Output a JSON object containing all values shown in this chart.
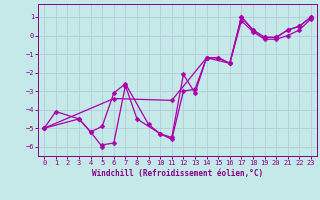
{
  "xlabel": "Windchill (Refroidissement éolien,°C)",
  "xlim_min": -0.5,
  "xlim_max": 23.5,
  "ylim_min": -6.5,
  "ylim_max": 1.7,
  "yticks": [
    1,
    0,
    -1,
    -2,
    -3,
    -4,
    -5,
    -6
  ],
  "xticks": [
    0,
    1,
    2,
    3,
    4,
    5,
    6,
    7,
    8,
    9,
    10,
    11,
    12,
    13,
    14,
    15,
    16,
    17,
    18,
    19,
    20,
    21,
    22,
    23
  ],
  "bg_color": "#c5e8e8",
  "grid_color": "#b0c8d8",
  "line_color": "#aa00aa",
  "s1_x": [
    0,
    1,
    3,
    4,
    5,
    5,
    6,
    7,
    8,
    10,
    11,
    12,
    13,
    14,
    15,
    16,
    17,
    18,
    19,
    20,
    21,
    22,
    23
  ],
  "s1_y": [
    -5.0,
    -4.1,
    -4.5,
    -5.2,
    -6.0,
    -5.9,
    -5.8,
    -2.7,
    -4.5,
    -5.3,
    -5.6,
    -3.0,
    -2.9,
    -1.2,
    -1.2,
    -1.5,
    1.0,
    0.3,
    -0.1,
    -0.1,
    0.3,
    0.5,
    1.0
  ],
  "s2_x": [
    0,
    3,
    4,
    5,
    6,
    7,
    9,
    10,
    11,
    12,
    13,
    14,
    15,
    16,
    17,
    18,
    19,
    20,
    21,
    22,
    23
  ],
  "s2_y": [
    -5.0,
    -4.5,
    -5.2,
    -4.9,
    -3.1,
    -2.6,
    -4.8,
    -5.3,
    -5.5,
    -2.1,
    -3.1,
    -1.2,
    -1.2,
    -1.5,
    0.8,
    0.2,
    -0.2,
    -0.2,
    0.0,
    0.3,
    0.9
  ],
  "s3_x": [
    0,
    6,
    11,
    14,
    16,
    17,
    18,
    19,
    20,
    21,
    22,
    23
  ],
  "s3_y": [
    -5.0,
    -3.4,
    -3.5,
    -1.2,
    -1.5,
    1.0,
    0.3,
    -0.1,
    -0.1,
    0.3,
    0.5,
    1.0
  ],
  "tick_fontsize": 5,
  "xlabel_fontsize": 5.5,
  "tick_color": "#880088",
  "xlabel_color": "#880088"
}
